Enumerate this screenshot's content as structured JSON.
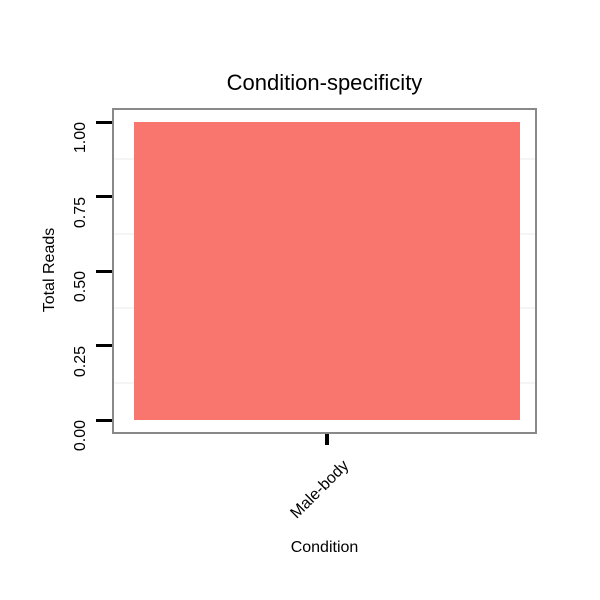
{
  "title": "Condition-specificity",
  "chart_data": {
    "type": "bar",
    "title": "Condition-specificity",
    "categories": [
      "Male-body"
    ],
    "values": [
      1.0
    ],
    "xlabel": "Condition",
    "ylabel": "Total Reads",
    "ylim": [
      0,
      1
    ],
    "yticks": [
      0,
      0.25,
      0.5,
      0.75,
      1
    ],
    "ytick_labels": [
      "0.00",
      "0.25",
      "0.50",
      "0.75",
      "1.00"
    ],
    "minor_gridlines": [
      0.125,
      0.375,
      0.625,
      0.875
    ],
    "grid": "minor-horizontal-faint",
    "legend": "none",
    "bar_color": "#F8766D"
  },
  "colors": {
    "bar": "#F8766D",
    "panel_border": "#898989",
    "minor_gridline": "#F5F5F5",
    "text": "#000000",
    "background": "#FFFFFF"
  }
}
